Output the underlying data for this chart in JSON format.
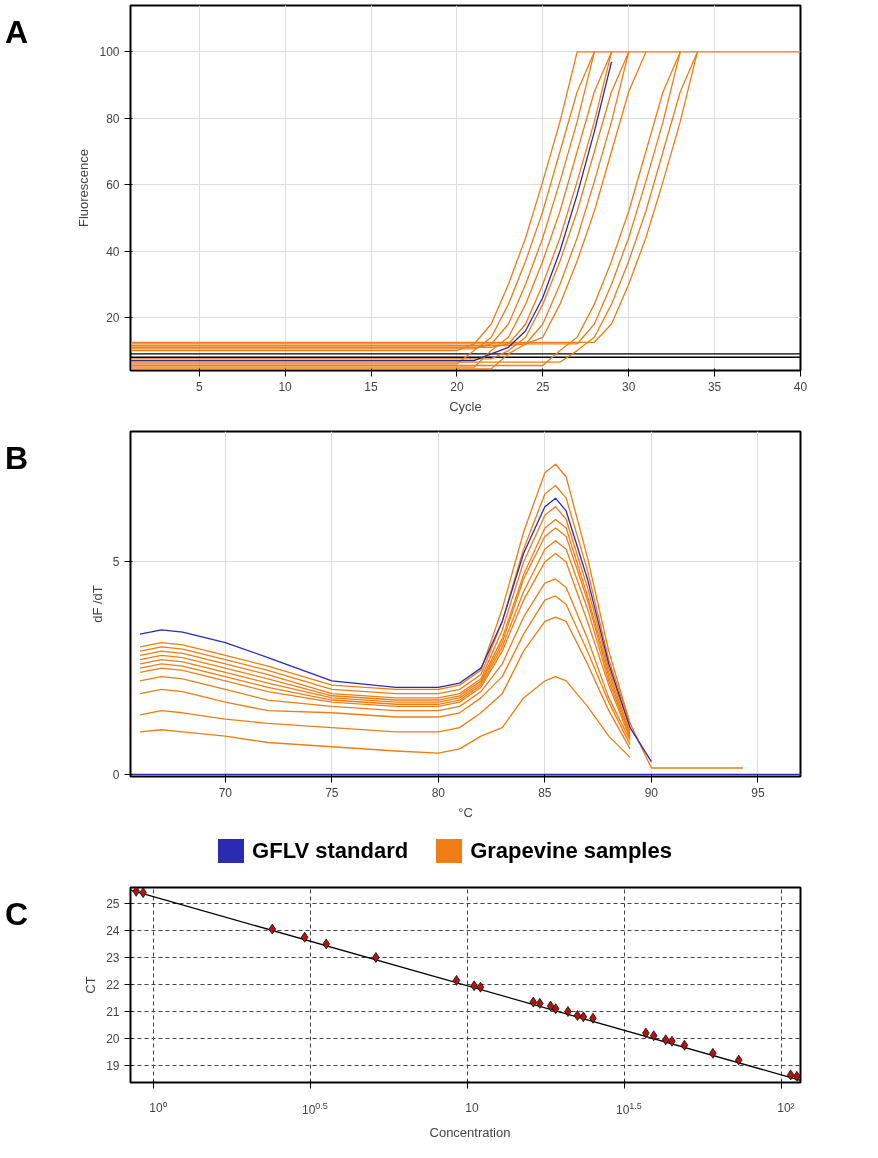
{
  "chart_data": [
    {
      "type": "line",
      "annotations": [
        "A"
      ],
      "xlabel": "Cycle",
      "ylabel": "Fluorescence",
      "xlim": [
        1,
        40
      ],
      "ylim": [
        4,
        114
      ],
      "xticks": [
        5,
        10,
        15,
        20,
        25,
        30,
        35,
        40
      ],
      "yticks": [
        20,
        40,
        60,
        80,
        100
      ],
      "grid": true,
      "x": [
        1,
        5,
        10,
        15,
        20,
        21,
        22,
        23,
        24,
        25,
        26,
        27,
        28,
        29,
        30,
        31,
        32,
        33,
        34,
        35,
        40
      ],
      "series": [
        {
          "color": "#000000",
          "values": [
            9,
            9,
            9,
            9,
            9,
            9,
            9,
            9,
            9,
            9,
            9,
            9,
            9,
            9,
            9,
            9,
            9,
            9,
            9,
            9,
            9
          ]
        },
        {
          "color": "#000000",
          "values": [
            8,
            8,
            8,
            8,
            8,
            8,
            8,
            8,
            8,
            8,
            8,
            8,
            8,
            8,
            8,
            8,
            8,
            8,
            8,
            8,
            8
          ]
        },
        {
          "color": "#f07d14",
          "values": [
            10,
            10,
            10,
            10,
            10,
            12,
            18,
            30,
            44,
            61,
            79,
            100,
            100,
            100,
            100,
            100,
            100,
            100,
            100,
            100,
            100
          ]
        },
        {
          "color": "#f07d14",
          "values": [
            6,
            6,
            6,
            6,
            6,
            10,
            14,
            24,
            37,
            52,
            70,
            88,
            100,
            null,
            null,
            null,
            null,
            null,
            null,
            null,
            null
          ]
        },
        {
          "color": "#f07d14",
          "values": [
            10.5,
            10.5,
            10.5,
            10.5,
            10.5,
            10.5,
            12,
            18,
            30,
            44,
            61,
            79,
            100,
            null,
            null,
            null,
            null,
            null,
            null,
            null,
            null
          ]
        },
        {
          "color": "#f07d14",
          "values": [
            5,
            5,
            5,
            5,
            5,
            5,
            10,
            14,
            24,
            37,
            52,
            70,
            88,
            100,
            null,
            null,
            null,
            null,
            null,
            null,
            null
          ]
        },
        {
          "color": "#f07d14",
          "values": [
            11,
            11,
            11,
            11,
            11,
            11,
            11,
            12,
            18,
            30,
            44,
            61,
            79,
            100,
            null,
            null,
            null,
            null,
            null,
            null,
            null
          ]
        },
        {
          "color": "#f07d14",
          "values": [
            7.5,
            7.5,
            7.5,
            7.5,
            7.5,
            7.5,
            7.5,
            10,
            14,
            24,
            37,
            52,
            70,
            88,
            100,
            null,
            null,
            null,
            null,
            null,
            null
          ]
        },
        {
          "color": "#f07d14",
          "values": [
            4.5,
            4.5,
            4.5,
            4.5,
            4.5,
            4.5,
            4.5,
            9,
            12,
            18,
            30,
            44,
            61,
            79,
            100,
            null,
            null,
            null,
            null,
            null,
            null
          ]
        },
        {
          "color": "#f07d14",
          "values": [
            11.5,
            11.5,
            11.5,
            11.5,
            11.5,
            11.5,
            11.5,
            11.5,
            12,
            14,
            24,
            37,
            52,
            70,
            88,
            100,
            null,
            null,
            null,
            null,
            null
          ]
        },
        {
          "color": "#f07d14",
          "values": [
            5.5,
            5.5,
            5.5,
            5.5,
            5.5,
            5.5,
            5.5,
            5.5,
            5.5,
            5.5,
            10,
            14,
            24,
            37,
            52,
            70,
            88,
            100,
            null,
            null,
            null
          ]
        },
        {
          "color": "#f07d14",
          "values": [
            12,
            12,
            12,
            12,
            12,
            12,
            12,
            12,
            12,
            12,
            12,
            12,
            18,
            30,
            44,
            61,
            79,
            100,
            null,
            null,
            null
          ]
        },
        {
          "color": "#f07d14",
          "values": [
            6.5,
            6.5,
            6.5,
            6.5,
            6.5,
            6.5,
            6.5,
            6.5,
            6.5,
            6.5,
            6.5,
            10,
            14,
            24,
            37,
            52,
            70,
            88,
            100,
            null,
            null
          ]
        },
        {
          "color": "#f07d14",
          "values": [
            12.5,
            12.5,
            12.5,
            12.5,
            12.5,
            12.5,
            12.5,
            12.5,
            12.5,
            12.5,
            12.5,
            12.5,
            12.5,
            18,
            30,
            44,
            61,
            79,
            100,
            null,
            null
          ]
        },
        {
          "color": "#2a2a9a",
          "values": [
            7,
            7,
            7,
            7,
            7,
            7,
            9,
            11,
            16,
            26,
            40,
            57,
            76,
            97,
            null,
            null,
            null,
            null,
            null,
            null,
            null
          ]
        }
      ]
    },
    {
      "type": "line",
      "annotations": [
        "B"
      ],
      "xlabel": "°C",
      "ylabel": "dF /dT",
      "xlim": [
        65.55,
        97
      ],
      "ylim": [
        -0.05,
        8.07
      ],
      "xticks": [
        70,
        75,
        80,
        85,
        90,
        95
      ],
      "yticks": [
        0,
        5
      ],
      "grid": true,
      "legend": "bottom",
      "x": [
        66,
        67,
        68,
        70,
        72,
        75,
        78,
        80,
        81,
        82,
        83,
        84,
        85,
        85.5,
        86,
        87,
        88,
        89,
        90,
        91,
        92,
        94.3
      ],
      "series": [
        {
          "color": "#f07d14",
          "name": "Grapevine samples",
          "values": [
            3.0,
            3.1,
            3.05,
            2.8,
            2.55,
            2.1,
            2.0,
            2.0,
            2.1,
            2.45,
            3.9,
            5.7,
            7.1,
            7.3,
            7.0,
            5.1,
            2.9,
            1.2,
            0.15,
            0.15,
            0.15,
            0.15
          ]
        },
        {
          "color": "#f07d14",
          "values": [
            2.9,
            3.0,
            2.95,
            2.7,
            2.45,
            2.0,
            1.9,
            1.9,
            2.0,
            2.35,
            3.6,
            5.3,
            6.6,
            6.8,
            6.5,
            4.8,
            2.7,
            1.2,
            null,
            null,
            null,
            null
          ]
        },
        {
          "color": "#f07d14",
          "values": [
            2.8,
            2.9,
            2.85,
            2.6,
            2.35,
            1.9,
            1.8,
            1.8,
            1.9,
            2.25,
            3.4,
            5.0,
            6.1,
            6.3,
            6.0,
            4.4,
            2.5,
            1.1,
            null,
            null,
            null,
            null
          ]
        },
        {
          "color": "#f07d14",
          "values": [
            2.7,
            2.8,
            2.75,
            2.5,
            2.25,
            1.85,
            1.75,
            1.75,
            1.85,
            2.2,
            3.2,
            4.7,
            5.8,
            6.0,
            5.8,
            4.2,
            2.4,
            1.0,
            null,
            null,
            null,
            null
          ]
        },
        {
          "color": "#f07d14",
          "values": [
            2.6,
            2.7,
            2.65,
            2.4,
            2.15,
            1.8,
            1.7,
            1.7,
            1.8,
            2.15,
            3.1,
            4.6,
            5.6,
            5.8,
            5.6,
            4.1,
            2.3,
            0.95,
            null,
            null,
            null,
            null
          ]
        },
        {
          "color": "#f07d14",
          "values": [
            2.5,
            2.6,
            2.55,
            2.3,
            2.05,
            1.75,
            1.65,
            1.65,
            1.75,
            2.1,
            3.0,
            4.3,
            5.3,
            5.5,
            5.3,
            3.9,
            2.2,
            0.9,
            null,
            null,
            null,
            null
          ]
        },
        {
          "color": "#f07d14",
          "values": [
            2.4,
            2.5,
            2.45,
            2.2,
            1.95,
            1.7,
            1.6,
            1.6,
            1.7,
            2.05,
            2.9,
            4.1,
            5.0,
            5.2,
            5.0,
            3.6,
            2.1,
            0.85,
            null,
            null,
            null,
            null
          ]
        },
        {
          "color": "#f07d14",
          "values": [
            2.2,
            2.3,
            2.25,
            2.0,
            1.75,
            1.6,
            1.5,
            1.5,
            1.6,
            1.95,
            2.6,
            3.7,
            4.5,
            4.6,
            4.4,
            3.2,
            1.8,
            0.8,
            null,
            null,
            null,
            null
          ]
        },
        {
          "color": "#f07d14",
          "values": [
            1.9,
            2.0,
            1.95,
            1.7,
            1.5,
            1.45,
            1.35,
            1.35,
            1.45,
            1.8,
            2.3,
            3.3,
            4.1,
            4.2,
            4.0,
            2.9,
            1.7,
            0.7,
            null,
            null,
            null,
            null
          ]
        },
        {
          "color": "#f07d14",
          "values": [
            1.4,
            1.5,
            1.45,
            1.3,
            1.2,
            1.1,
            1.0,
            1.0,
            1.1,
            1.45,
            1.9,
            2.9,
            3.6,
            3.7,
            3.6,
            2.6,
            1.5,
            0.6,
            null,
            null,
            null,
            null
          ]
        },
        {
          "color": "#f07d14",
          "values": [
            1.0,
            1.05,
            1.0,
            0.9,
            0.75,
            0.65,
            0.55,
            0.5,
            0.6,
            0.9,
            1.1,
            1.8,
            2.2,
            2.3,
            2.2,
            1.6,
            0.9,
            0.4,
            null,
            null,
            null,
            null
          ]
        },
        {
          "color": "#2a2ab4",
          "name": "GFLV standard",
          "values": [
            3.3,
            3.4,
            3.35,
            3.1,
            2.75,
            2.2,
            2.05,
            2.05,
            2.15,
            2.5,
            3.6,
            5.2,
            6.3,
            6.5,
            6.2,
            4.6,
            2.6,
            1.1,
            0.3,
            null,
            null,
            null
          ]
        },
        {
          "color": "#2a2ab4",
          "x": [
            65.55,
            97
          ],
          "values": [
            0,
            0
          ]
        }
      ]
    },
    {
      "type": "scatter",
      "annotations": [
        "C"
      ],
      "xlabel": "Concentration",
      "ylabel": "CT",
      "log": "x",
      "xlim": [
        0.845,
        115
      ],
      "ylim": [
        18.37,
        25.59
      ],
      "xticks": [
        {
          "value": 1,
          "label": "10⁰"
        },
        {
          "value": 3.162,
          "label": "10$^{0.5}$"
        },
        {
          "value": 10,
          "label": "10"
        },
        {
          "value": 31.62,
          "label": "10$^{1.5}$"
        },
        {
          "value": 100,
          "label": "10²"
        }
      ],
      "yticks": [
        19,
        20,
        21,
        22,
        23,
        24,
        25
      ],
      "grid": true,
      "series": [
        {
          "type": "line",
          "color": "#000000",
          "x": [
            0.845,
            115
          ],
          "values": [
            25.49,
            18.45
          ]
        },
        {
          "type": "scatter",
          "marker": "diamond",
          "color": "#b01414",
          "x": [
            0.881,
            0.927,
            2.39,
            3.03,
            3.55,
            5.11,
            9.23,
            10.5,
            11.0,
            16.2,
            17.0,
            18.4,
            19.1,
            20.9,
            22.4,
            23.4,
            25.1,
            37.0,
            39.2,
            42.8,
            44.8,
            49.1,
            60.5,
            73.1,
            107,
            112
          ],
          "values": [
            25.45,
            25.4,
            24.05,
            23.75,
            23.5,
            23.0,
            22.15,
            21.95,
            21.9,
            21.35,
            21.3,
            21.2,
            21.1,
            21.0,
            20.85,
            20.8,
            20.75,
            20.2,
            20.1,
            19.95,
            19.9,
            19.75,
            19.45,
            19.2,
            18.65,
            18.6
          ]
        }
      ]
    }
  ]
}
